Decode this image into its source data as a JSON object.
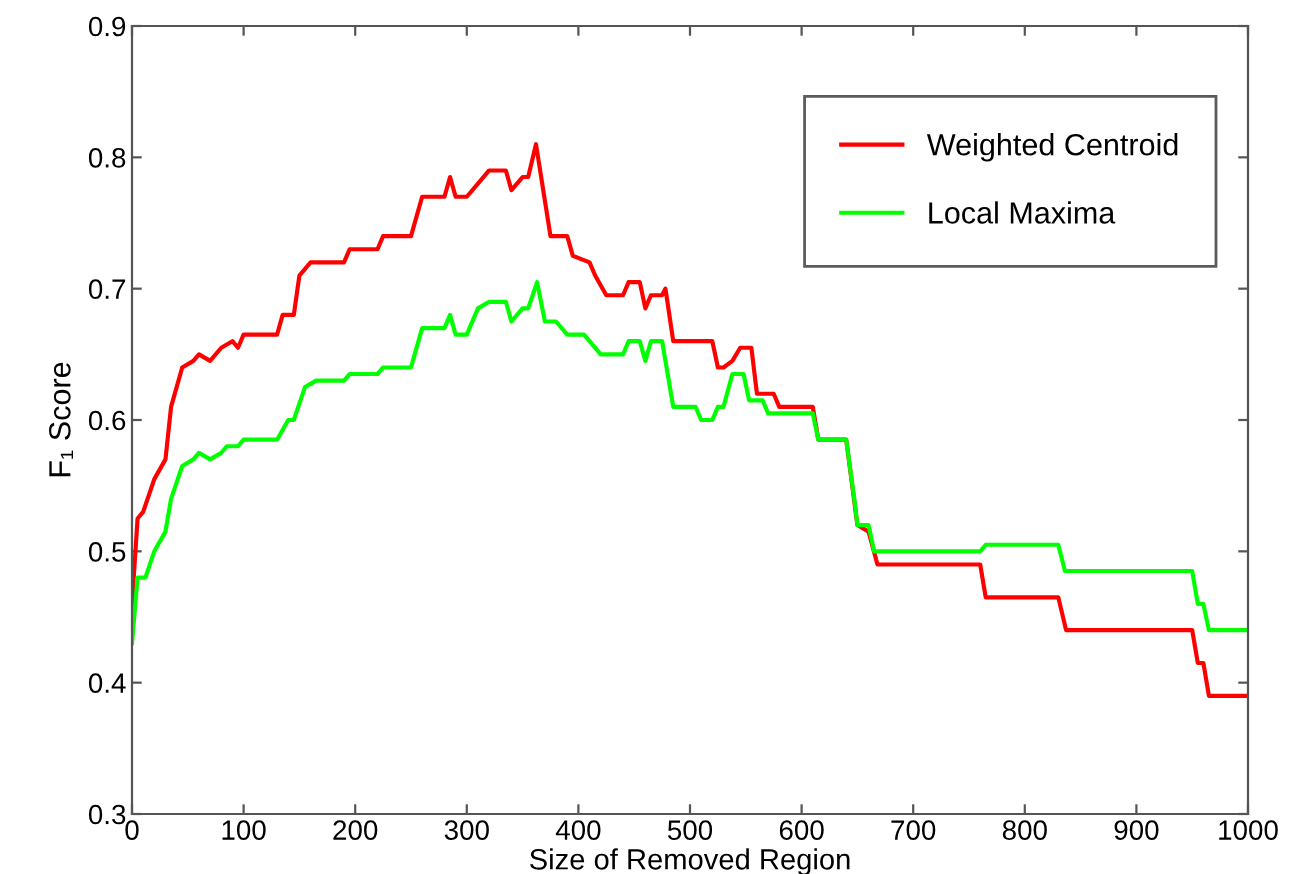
{
  "chart_data": {
    "type": "line",
    "xlabel": "Size of Removed Region",
    "ylabel": "F₁ Score",
    "xlim": [
      0,
      1000
    ],
    "ylim": [
      0.3,
      0.9
    ],
    "xticks": [
      0,
      100,
      200,
      300,
      400,
      500,
      600,
      700,
      800,
      900,
      1000
    ],
    "yticks": [
      0.3,
      0.4,
      0.5,
      0.6,
      0.7,
      0.8,
      0.9
    ],
    "grid": false,
    "legend": "top right",
    "marker": "none",
    "line_style": "solid",
    "series": [
      {
        "name": "Weighted Centroid",
        "color": "#ff0000",
        "x": [
          0,
          5,
          10,
          20,
          30,
          35,
          45,
          55,
          60,
          70,
          80,
          90,
          95,
          100,
          130,
          135,
          145,
          150,
          160,
          190,
          195,
          220,
          225,
          250,
          260,
          280,
          285,
          290,
          300,
          310,
          320,
          335,
          340,
          350,
          355,
          362,
          375,
          390,
          395,
          410,
          415,
          425,
          440,
          445,
          455,
          460,
          465,
          475,
          478,
          485,
          520,
          525,
          530,
          538,
          545,
          555,
          560,
          575,
          580,
          610,
          615,
          640,
          650,
          660,
          668,
          760,
          765,
          830,
          837,
          950,
          955,
          960,
          965,
          1000
        ],
        "values": [
          0.46,
          0.525,
          0.53,
          0.555,
          0.57,
          0.61,
          0.64,
          0.645,
          0.65,
          0.645,
          0.655,
          0.66,
          0.655,
          0.665,
          0.665,
          0.68,
          0.68,
          0.71,
          0.72,
          0.72,
          0.73,
          0.73,
          0.74,
          0.74,
          0.77,
          0.77,
          0.785,
          0.77,
          0.77,
          0.78,
          0.79,
          0.79,
          0.775,
          0.785,
          0.785,
          0.81,
          0.74,
          0.74,
          0.725,
          0.72,
          0.71,
          0.695,
          0.695,
          0.705,
          0.705,
          0.685,
          0.695,
          0.695,
          0.7,
          0.66,
          0.66,
          0.64,
          0.64,
          0.645,
          0.655,
          0.655,
          0.62,
          0.62,
          0.61,
          0.61,
          0.585,
          0.585,
          0.52,
          0.515,
          0.49,
          0.49,
          0.465,
          0.465,
          0.44,
          0.44,
          0.415,
          0.415,
          0.39,
          0.39
        ]
      },
      {
        "name": "Local Maxima",
        "color": "#00ff00",
        "x": [
          0,
          5,
          12,
          20,
          30,
          35,
          45,
          55,
          60,
          70,
          80,
          85,
          95,
          100,
          130,
          140,
          145,
          155,
          165,
          190,
          195,
          220,
          225,
          250,
          260,
          280,
          285,
          290,
          300,
          310,
          320,
          335,
          340,
          350,
          355,
          363,
          370,
          380,
          390,
          405,
          410,
          420,
          440,
          445,
          455,
          460,
          465,
          475,
          485,
          505,
          510,
          520,
          525,
          530,
          538,
          548,
          553,
          565,
          570,
          610,
          615,
          640,
          648,
          650,
          660,
          665,
          760,
          765,
          830,
          836,
          950,
          955,
          960,
          965,
          1000
        ],
        "values": [
          0.43,
          0.48,
          0.48,
          0.5,
          0.515,
          0.54,
          0.565,
          0.57,
          0.575,
          0.57,
          0.575,
          0.58,
          0.58,
          0.585,
          0.585,
          0.6,
          0.6,
          0.625,
          0.63,
          0.63,
          0.635,
          0.635,
          0.64,
          0.64,
          0.67,
          0.67,
          0.68,
          0.665,
          0.665,
          0.685,
          0.69,
          0.69,
          0.675,
          0.685,
          0.685,
          0.705,
          0.675,
          0.675,
          0.665,
          0.665,
          0.66,
          0.65,
          0.65,
          0.66,
          0.66,
          0.645,
          0.66,
          0.66,
          0.61,
          0.61,
          0.6,
          0.6,
          0.61,
          0.61,
          0.635,
          0.635,
          0.615,
          0.615,
          0.605,
          0.605,
          0.585,
          0.585,
          0.535,
          0.52,
          0.52,
          0.5,
          0.5,
          0.505,
          0.505,
          0.485,
          0.485,
          0.46,
          0.46,
          0.44,
          0.44
        ]
      }
    ]
  }
}
